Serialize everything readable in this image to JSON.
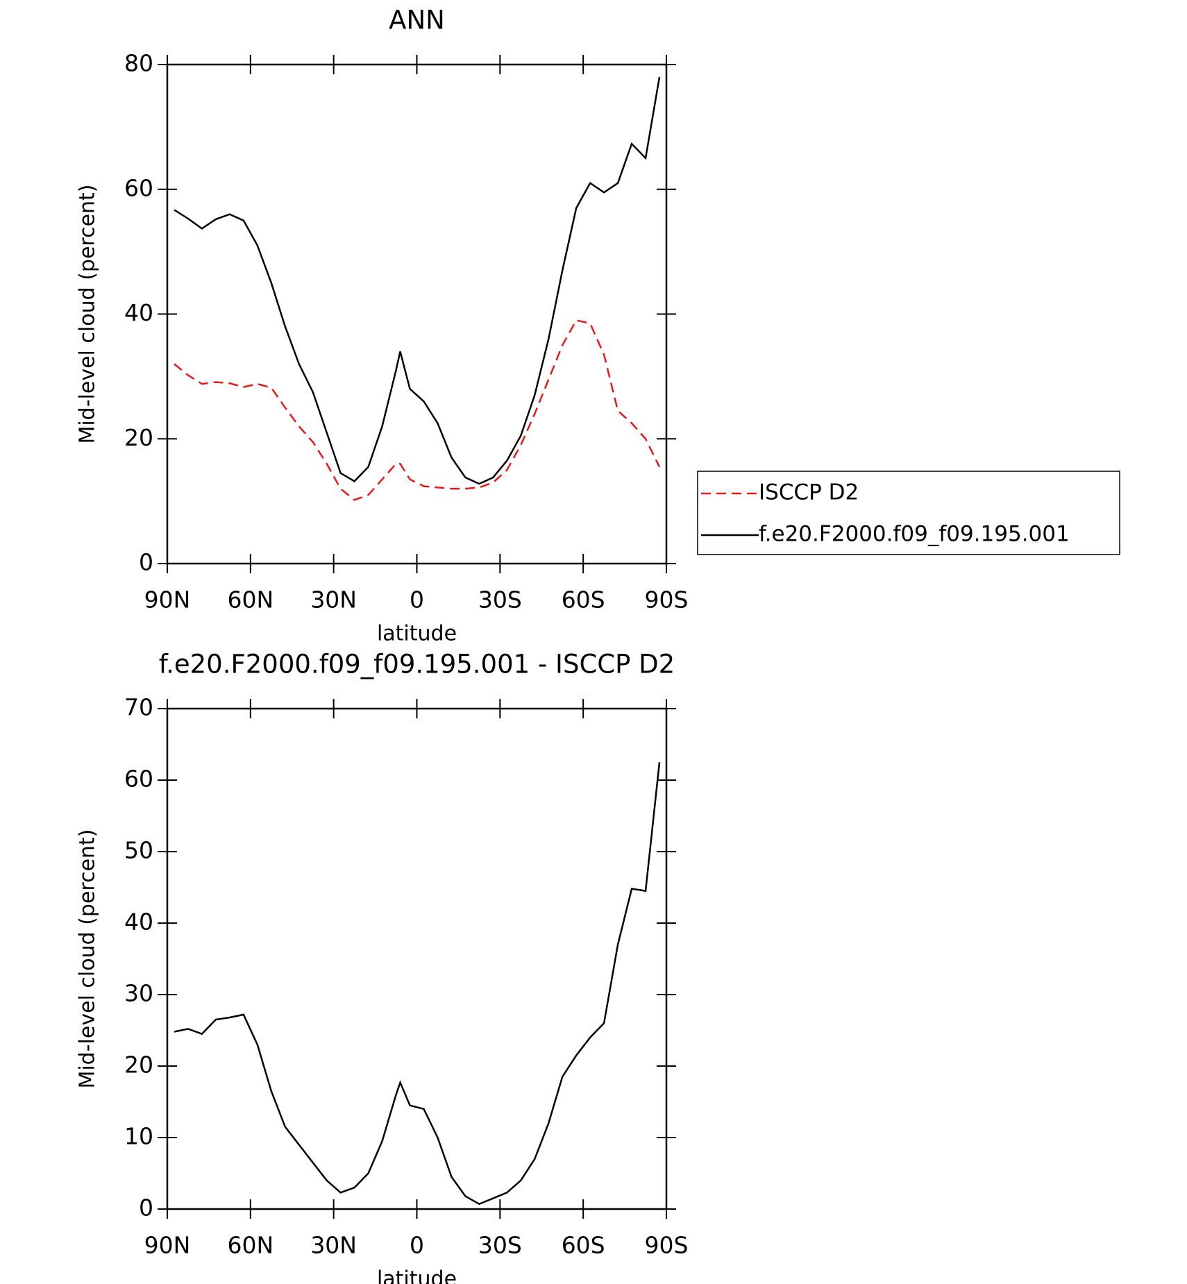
{
  "chart_data": [
    {
      "type": "line",
      "title": "ANN",
      "xlabel": "latitude",
      "ylabel": "Mid-level cloud (percent)",
      "x": [
        87.5,
        82.5,
        77.5,
        72.5,
        67.5,
        62.5,
        57.5,
        52.5,
        47.5,
        42.5,
        37.5,
        32.5,
        27.5,
        22.5,
        17.5,
        12.5,
        7.5,
        6,
        2.5,
        -2.5,
        -7.5,
        -12.5,
        -17.5,
        -22.5,
        -27.5,
        -32.5,
        -37.5,
        -42.5,
        -47.5,
        -52.5,
        -57.5,
        -62.5,
        -67.5,
        -72.5,
        -77.5,
        -82.5,
        -87.5
      ],
      "series": [
        {
          "name": "ISCCP D2",
          "color": "#e41a1c",
          "dash": true,
          "values": [
            32,
            30.2,
            28.8,
            29.1,
            28.9,
            28.3,
            28.8,
            28.2,
            25,
            22,
            19.5,
            16,
            12,
            10.2,
            11,
            13.5,
            16,
            16,
            13.5,
            12.4,
            12.2,
            12,
            12,
            12.2,
            13,
            15,
            19,
            24,
            29.5,
            35,
            39,
            38.5,
            33.5,
            24.5,
            22.5,
            20,
            15.5
          ]
        },
        {
          "name": "f.e20.F2000.f09_f09.195.001",
          "color": "#000000",
          "dash": false,
          "values": [
            56.7,
            55.3,
            53.7,
            55.2,
            56,
            55,
            51,
            45,
            38,
            32,
            27.5,
            21,
            14.5,
            13.2,
            15.5,
            22,
            31,
            34,
            28,
            26,
            22.5,
            17,
            13.8,
            12.8,
            13.8,
            16.5,
            20.5,
            27,
            36,
            47,
            57,
            61,
            59.5,
            61,
            67.3,
            65,
            78
          ]
        }
      ],
      "xlim": [
        90,
        -90
      ],
      "xticks": [
        {
          "value": 90,
          "label": "90N"
        },
        {
          "value": 60,
          "label": "60N"
        },
        {
          "value": 30,
          "label": "30N"
        },
        0,
        {
          "value": -30,
          "label": "30S"
        },
        {
          "value": -60,
          "label": "60S"
        },
        {
          "value": -90,
          "label": "90S"
        }
      ],
      "ylim": [
        0,
        80
      ],
      "yticks": [
        0,
        20,
        40,
        60,
        80
      ],
      "legend": "right"
    },
    {
      "type": "line",
      "title": "f.e20.F2000.f09_f09.195.001 - ISCCP D2",
      "xlabel": "latitude",
      "ylabel": "Mid-level cloud (percent)",
      "x": [
        87.5,
        82.5,
        77.5,
        72.5,
        67.5,
        62.5,
        57.5,
        52.5,
        47.5,
        42.5,
        37.5,
        32.5,
        27.5,
        22.5,
        17.5,
        12.5,
        7.5,
        6,
        2.5,
        -2.5,
        -7.5,
        -12.5,
        -17.5,
        -22.5,
        -27.5,
        -32.5,
        -37.5,
        -42.5,
        -47.5,
        -52.5,
        -57.5,
        -62.5,
        -67.5,
        -72.5,
        -77.5,
        -82.5,
        -87.5
      ],
      "series": [
        {
          "color": "#000000",
          "dash": false,
          "values": [
            24.8,
            25.2,
            24.5,
            26.5,
            26.8,
            27.2,
            23,
            16.5,
            11.5,
            9,
            6.5,
            4,
            2.3,
            3,
            5,
            9.5,
            16,
            17.7,
            14.5,
            14,
            10,
            4.5,
            1.8,
            0.7,
            1.5,
            2.3,
            4,
            7,
            12,
            18.5,
            21.5,
            24,
            26,
            37,
            44.8,
            44.5,
            62.5
          ]
        }
      ],
      "xlim": [
        90,
        -90
      ],
      "xticks": [
        {
          "value": 90,
          "label": "90N"
        },
        {
          "value": 60,
          "label": "60N"
        },
        {
          "value": 30,
          "label": "30N"
        },
        0,
        {
          "value": -30,
          "label": "30S"
        },
        {
          "value": -60,
          "label": "60S"
        },
        {
          "value": -90,
          "label": "90S"
        }
      ],
      "ylim": [
        0,
        70
      ],
      "yticks": [
        0,
        10,
        20,
        30,
        40,
        50,
        60,
        70
      ]
    }
  ]
}
